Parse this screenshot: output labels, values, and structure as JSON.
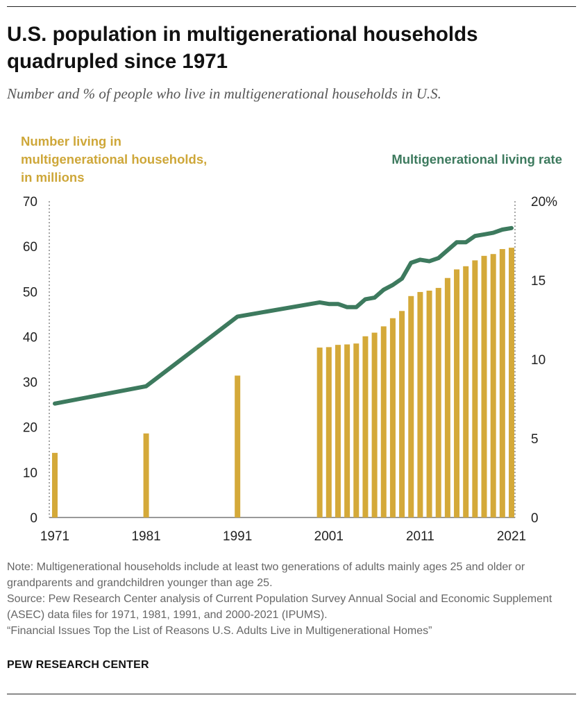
{
  "header": {
    "title": "U.S. population in multigenerational households quadrupled since 1971",
    "subtitle": "Number and % of people who live in multigenerational households in U.S."
  },
  "chart_data": {
    "type": "bar+line",
    "left_axis": {
      "label": "Number living in multigenerational households, in millions",
      "ylim": [
        0,
        70
      ],
      "ticks": [
        "70",
        "60",
        "50",
        "40",
        "30",
        "20",
        "10",
        "0"
      ],
      "tick_values": [
        70,
        60,
        50,
        40,
        30,
        20,
        10,
        0
      ]
    },
    "right_axis": {
      "label": "Multigenerational living rate",
      "ylim": [
        0,
        20
      ],
      "ticks": [
        "20%",
        "15",
        "10",
        "5",
        "0"
      ],
      "tick_values": [
        20,
        15,
        10,
        5,
        0
      ]
    },
    "x_axis": {
      "ticks": [
        "1971",
        "1981",
        "1991",
        "2001",
        "2011",
        "2021"
      ],
      "tick_values": [
        1971,
        1981,
        1991,
        2001,
        2011,
        2021
      ],
      "xlim": [
        1971,
        2021
      ]
    },
    "grid": false,
    "series": [
      {
        "kind": "bar",
        "axis": "left",
        "color": "#d4a939",
        "x": [
          1971,
          1981,
          1991,
          2000,
          2001,
          2002,
          2003,
          2004,
          2005,
          2006,
          2007,
          2008,
          2009,
          2010,
          2011,
          2012,
          2013,
          2014,
          2015,
          2016,
          2017,
          2018,
          2019,
          2020,
          2021
        ],
        "values": [
          14.3,
          18.6,
          31.4,
          37.6,
          37.7,
          38.2,
          38.3,
          38.5,
          40.1,
          40.9,
          42.3,
          44.1,
          45.7,
          49.0,
          49.9,
          50.2,
          50.8,
          53.0,
          54.9,
          55.6,
          56.9,
          57.9,
          58.3,
          59.4,
          59.7
        ]
      },
      {
        "kind": "line",
        "axis": "right",
        "color": "#3d7a5e",
        "x": [
          1971,
          1981,
          1991,
          2000,
          2001,
          2002,
          2003,
          2004,
          2005,
          2006,
          2007,
          2008,
          2009,
          2010,
          2011,
          2012,
          2013,
          2014,
          2015,
          2016,
          2017,
          2018,
          2019,
          2020,
          2021
        ],
        "values": [
          7.2,
          8.3,
          12.7,
          13.6,
          13.5,
          13.5,
          13.3,
          13.3,
          13.8,
          13.9,
          14.4,
          14.7,
          15.1,
          16.1,
          16.3,
          16.2,
          16.4,
          16.9,
          17.4,
          17.4,
          17.8,
          17.9,
          18.0,
          18.2,
          18.3
        ]
      }
    ]
  },
  "footer": {
    "note": "Note: Multigenerational households include at least two generations of adults mainly ages 25 and older or grandparents and grandchildren younger than age 25.",
    "source": "Source: Pew Research Center analysis of Current Population Survey Annual Social and Economic Supplement (ASEC) data files for 1971, 1981, 1991, and 2000-2021 (IPUMS).",
    "report": "“Financial Issues Top the List of Reasons U.S. Adults Live in Multigenerational Homes”",
    "brand": "PEW RESEARCH CENTER"
  }
}
